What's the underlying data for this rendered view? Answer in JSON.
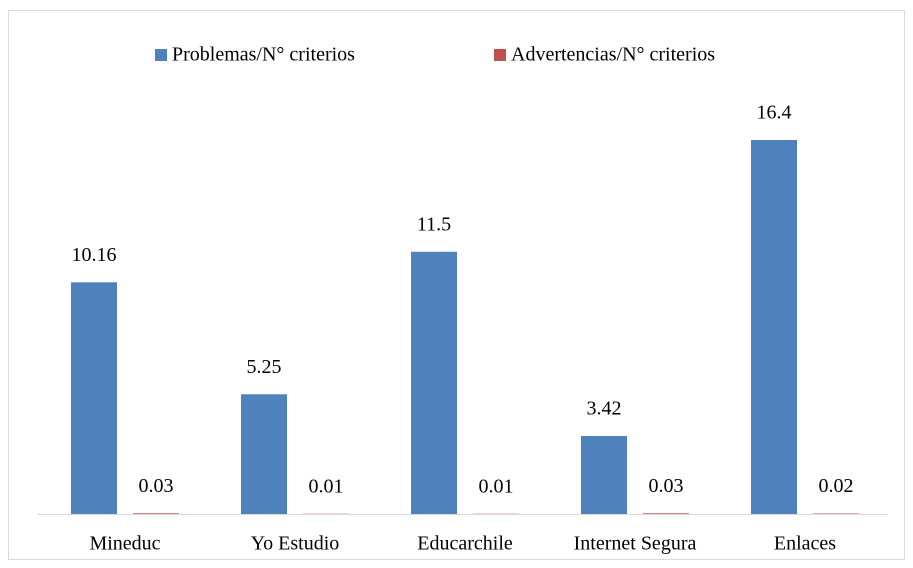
{
  "chart_data": {
    "type": "bar",
    "categories": [
      "Mineduc",
      "Yo Estudio",
      "Educarchile",
      "Internet Segura",
      "Enlaces"
    ],
    "series": [
      {
        "name": "Problemas/N° criterios",
        "color": "#4f81bd",
        "values": [
          10.16,
          5.25,
          11.5,
          3.42,
          16.4
        ]
      },
      {
        "name": "Advertencias/N° criterios",
        "color": "#c0504d",
        "values": [
          0.03,
          0.01,
          0.01,
          0.03,
          0.02
        ]
      }
    ],
    "legend": "top"
  }
}
